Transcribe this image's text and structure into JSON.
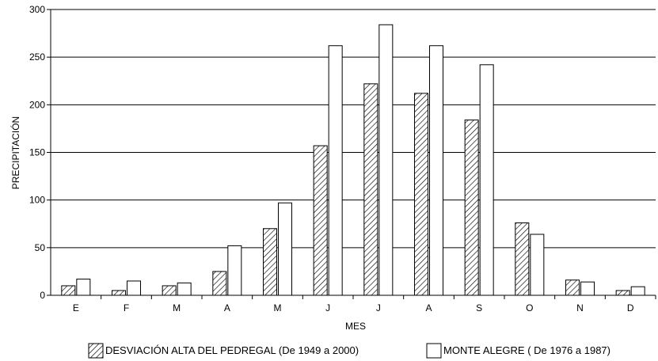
{
  "chart_data": {
    "type": "bar",
    "xlabel": "MES",
    "ylabel": "PRECIPITACIÓN",
    "ylim": [
      0,
      300
    ],
    "yticks": [
      0,
      50,
      100,
      150,
      200,
      250,
      300
    ],
    "grid": "horizontal",
    "legend_position": "bottom",
    "categories": [
      "E",
      "F",
      "M",
      "A",
      "M",
      "J",
      "J",
      "A",
      "S",
      "O",
      "N",
      "D"
    ],
    "series": [
      {
        "name": "DESVIACIÓN ALTA DEL PEDREGAL (De 1949 a 2000)",
        "pattern": "hatched",
        "values": [
          10,
          5,
          10,
          25,
          70,
          157,
          222,
          212,
          184,
          76,
          16,
          5
        ]
      },
      {
        "name": "MONTE ALEGRE ( De 1976 a 1987)",
        "pattern": "white",
        "values": [
          17,
          15,
          13,
          52,
          97,
          262,
          284,
          262,
          242,
          64,
          14,
          9
        ]
      }
    ]
  }
}
